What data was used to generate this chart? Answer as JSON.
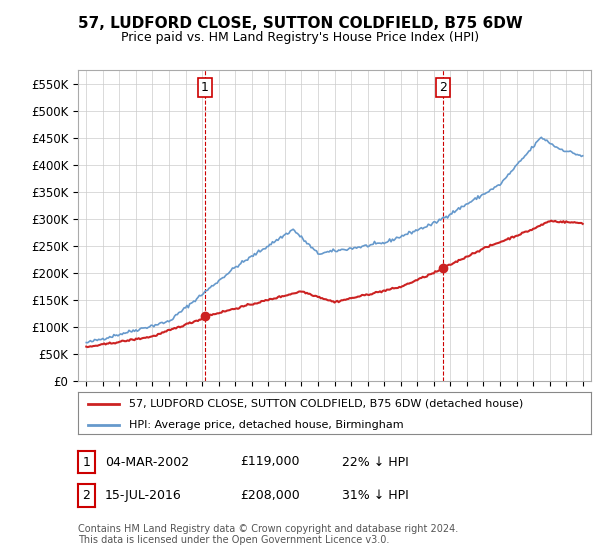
{
  "title": "57, LUDFORD CLOSE, SUTTON COLDFIELD, B75 6DW",
  "subtitle": "Price paid vs. HM Land Registry's House Price Index (HPI)",
  "ylim": [
    0,
    575000
  ],
  "yticks": [
    0,
    50000,
    100000,
    150000,
    200000,
    250000,
    300000,
    350000,
    400000,
    450000,
    500000,
    550000
  ],
  "ytick_labels": [
    "£0",
    "£50K",
    "£100K",
    "£150K",
    "£200K",
    "£250K",
    "£300K",
    "£350K",
    "£400K",
    "£450K",
    "£500K",
    "£550K"
  ],
  "hpi_color": "#6699cc",
  "price_color": "#cc2222",
  "vline_color": "#cc0000",
  "grid_color": "#cccccc",
  "background_color": "#ffffff",
  "legend_label_price": "57, LUDFORD CLOSE, SUTTON COLDFIELD, B75 6DW (detached house)",
  "legend_label_hpi": "HPI: Average price, detached house, Birmingham",
  "transaction1_date": "04-MAR-2002",
  "transaction1_price": "£119,000",
  "transaction1_hpi": "22% ↓ HPI",
  "transaction1_year": 2002.17,
  "transaction2_date": "15-JUL-2016",
  "transaction2_price": "£208,000",
  "transaction2_hpi": "31% ↓ HPI",
  "transaction2_year": 2016.54,
  "footer": "Contains HM Land Registry data © Crown copyright and database right 2024.\nThis data is licensed under the Open Government Licence v3.0."
}
